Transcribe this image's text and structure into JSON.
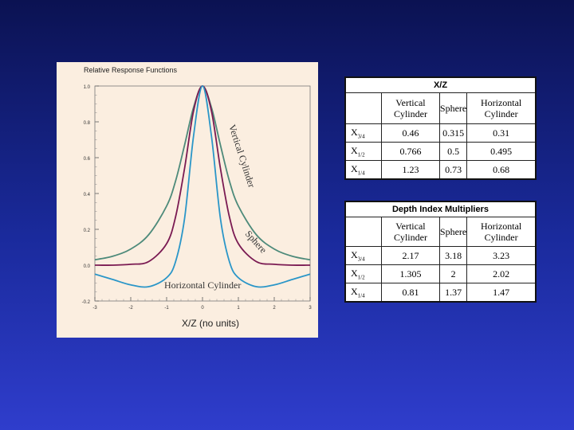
{
  "figure": {
    "title": "Relative Response Functions",
    "chart_data": {
      "type": "line",
      "title": "Relative Response Functions",
      "xlabel": "X/Z (no units)",
      "ylabel": "",
      "xlim": [
        -3,
        3
      ],
      "ylim": [
        -0.2,
        1.0
      ],
      "x_ticks": [
        -3,
        -2,
        -1,
        0,
        1,
        2,
        3
      ],
      "y_ticks": [
        1.0,
        0.8,
        0.6,
        0.4,
        0.2,
        0.0,
        -0.2
      ],
      "y_tick_labels": [
        "1.0",
        "0.8",
        "0.6",
        "0.4",
        "0.2",
        "0.0",
        "-0.2"
      ],
      "x_tick_labels": [
        "-3",
        "-2",
        "-1",
        "0",
        "1",
        "2",
        "3"
      ],
      "series": [
        {
          "name": "Vertical Cylinder",
          "color": "#4d8a7a",
          "x": [
            -3,
            -2.5,
            -2,
            -1.5,
            -1,
            -0.75,
            -0.5,
            -0.25,
            0,
            0.25,
            0.5,
            0.75,
            1,
            1.5,
            2,
            2.5,
            3
          ],
          "y": [
            0.03,
            0.05,
            0.09,
            0.17,
            0.33,
            0.47,
            0.67,
            0.88,
            1.0,
            0.88,
            0.67,
            0.47,
            0.33,
            0.17,
            0.09,
            0.05,
            0.03
          ]
        },
        {
          "name": "Sphere",
          "color": "#7a1a52",
          "x": [
            -3,
            -2.5,
            -2,
            -1.5,
            -1,
            -0.75,
            -0.5,
            -0.25,
            0,
            0.25,
            0.5,
            0.75,
            1,
            1.5,
            2,
            2.5,
            3
          ],
          "y": [
            0.0,
            0.0,
            0.005,
            0.02,
            0.12,
            0.27,
            0.54,
            0.86,
            1.0,
            0.86,
            0.54,
            0.27,
            0.12,
            0.02,
            0.005,
            0.0,
            0.0
          ]
        },
        {
          "name": "Horizontal Cylinder",
          "color": "#2a96c8",
          "x": [
            -3,
            -2.5,
            -2,
            -1.5,
            -1,
            -0.75,
            -0.5,
            -0.25,
            0,
            0.25,
            0.5,
            0.75,
            1,
            1.5,
            2,
            2.5,
            3
          ],
          "y": [
            -0.05,
            -0.08,
            -0.11,
            -0.12,
            -0.07,
            0.02,
            0.26,
            0.72,
            1.0,
            0.72,
            0.26,
            0.02,
            -0.07,
            -0.12,
            -0.11,
            -0.08,
            -0.05
          ]
        }
      ],
      "annotations": [
        "Vertical Cylinder",
        "Sphere",
        "Horizontal Cylinder"
      ]
    }
  },
  "table1": {
    "caption": "X/Z",
    "columns": [
      "",
      "Vertical Cylinder",
      "Sphere",
      "Horizontal Cylinder"
    ],
    "rows": [
      {
        "label": "X",
        "sub": "3/4",
        "values": [
          "0.46",
          "0.315",
          "0.31"
        ]
      },
      {
        "label": "X",
        "sub": "1/2",
        "values": [
          "0.766",
          "0.5",
          "0.495"
        ]
      },
      {
        "label": "X",
        "sub": "1/4",
        "values": [
          "1.23",
          "0.73",
          "0.68"
        ]
      }
    ]
  },
  "table2": {
    "caption": "Depth Index Multipliers",
    "columns": [
      "",
      "Vertical Cylinder",
      "Sphere",
      "Horizontal Cylinder"
    ],
    "rows": [
      {
        "label": "X",
        "sub": "3/4",
        "values": [
          "2.17",
          "3.18",
          "3.23"
        ]
      },
      {
        "label": "X",
        "sub": "1/2",
        "values": [
          "1.305",
          "2",
          "2.02"
        ]
      },
      {
        "label": "X",
        "sub": "1/4",
        "values": [
          "0.81",
          "1.37",
          "1.47"
        ]
      }
    ]
  }
}
